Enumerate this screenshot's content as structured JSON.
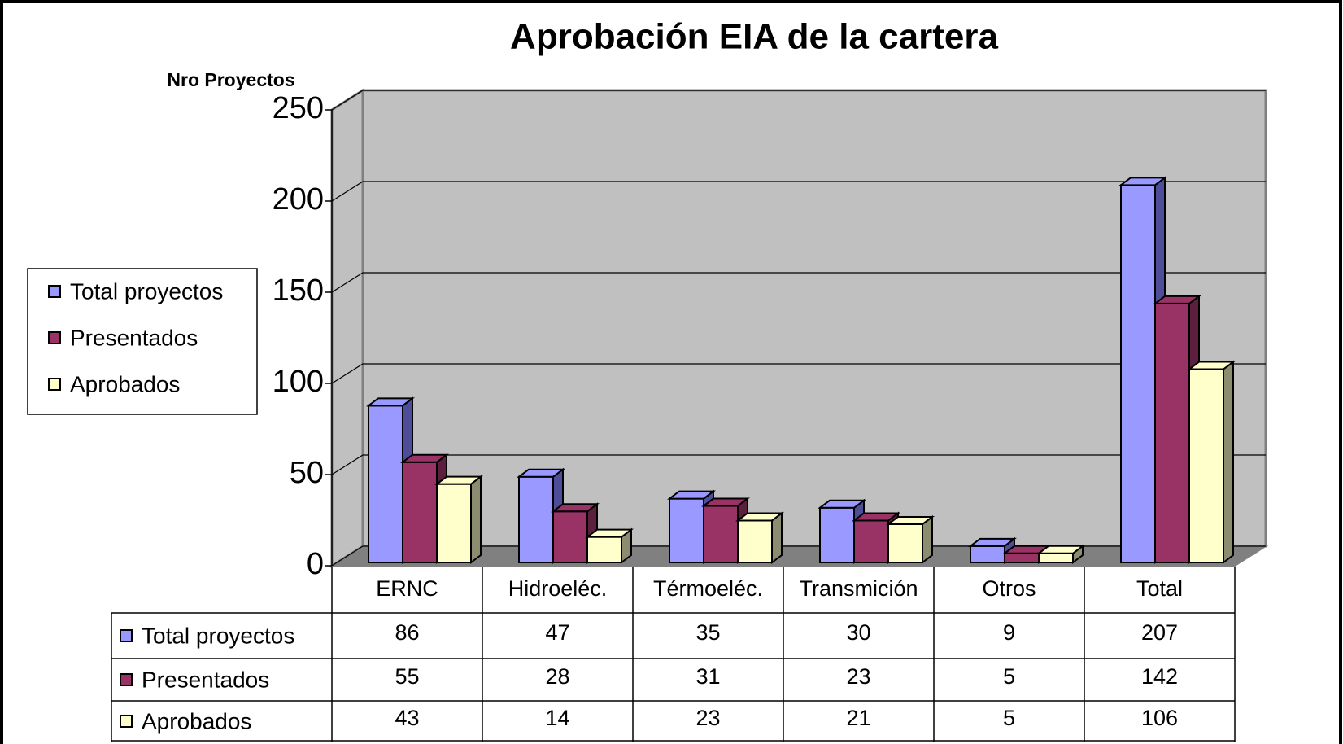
{
  "chart_data": {
    "type": "bar",
    "title": "Aprobación EIA de la cartera",
    "y_label": "Nro Proyectos",
    "categories": [
      "ERNC",
      "Hidroeléc.",
      "Térmoeléc.",
      "Transmición",
      "Otros",
      "Total"
    ],
    "series": [
      {
        "name": "Total proyectos",
        "color": "#9999ff",
        "side": "#4d4d99",
        "values": [
          86,
          47,
          35,
          30,
          9,
          207
        ]
      },
      {
        "name": "Presentados",
        "color": "#993366",
        "side": "#5c1f3d",
        "values": [
          55,
          28,
          31,
          23,
          5,
          142
        ]
      },
      {
        "name": "Aprobados",
        "color": "#ffffcc",
        "side": "#8c8c70",
        "values": [
          43,
          14,
          23,
          21,
          5,
          106
        ]
      }
    ],
    "ylim": [
      0,
      250
    ],
    "yticks": [
      0,
      50,
      100,
      150,
      200,
      250
    ],
    "grid": true,
    "legend": "left",
    "data_table": true
  }
}
